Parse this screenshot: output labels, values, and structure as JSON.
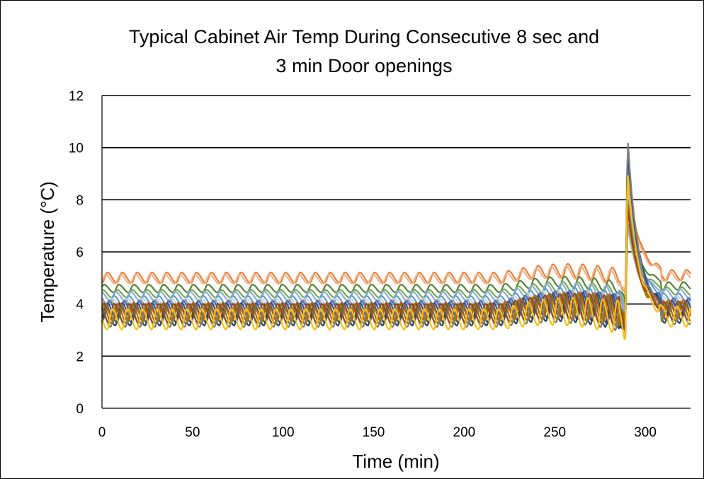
{
  "chart_data": {
    "type": "line",
    "title_line1": "Typical Cabinet Air Temp During Consecutive 8 sec and",
    "title_line2": "3 min Door openings",
    "xlabel": "Time (min)",
    "ylabel": "Temperature (°C)",
    "xlim": [
      0,
      325
    ],
    "ylim": [
      0,
      12
    ],
    "xticks": [
      0,
      50,
      100,
      150,
      200,
      250,
      300
    ],
    "yticks": [
      0,
      2,
      4,
      6,
      8,
      10,
      12
    ],
    "grid": "horizontal",
    "legend": "none",
    "cycle_period_min": 8.2,
    "door_spike_time_min": 289,
    "series": [
      {
        "color": "#ED7D31",
        "base": 4.95,
        "amp": 0.4,
        "spike": 9.0
      },
      {
        "color": "#F4B183",
        "base": 4.9,
        "amp": 0.35,
        "spike": 8.6
      },
      {
        "color": "#548235",
        "base": 4.55,
        "amp": 0.3,
        "spike": 7.6
      },
      {
        "color": "#70AD47",
        "base": 4.35,
        "amp": 0.3,
        "spike": 7.2
      },
      {
        "color": "#8FAADC",
        "base": 4.25,
        "amp": 0.35,
        "spike": 7.0
      },
      {
        "color": "#5B9BD5",
        "base": 4.05,
        "amp": 0.4,
        "spike": 8.2
      },
      {
        "color": "#BDD7EE",
        "base": 3.95,
        "amp": 0.4,
        "spike": 7.0
      },
      {
        "color": "#A5A5A5",
        "base": 3.8,
        "amp": 0.55,
        "spike": 7.2
      },
      {
        "color": "#4472C4",
        "base": 3.7,
        "amp": 0.65,
        "spike": 9.6
      },
      {
        "color": "#2F5597",
        "base": 3.55,
        "amp": 0.75,
        "spike": 10.0
      },
      {
        "color": "#264478",
        "base": 3.45,
        "amp": 0.8,
        "spike": 10.4
      },
      {
        "color": "#C55A11",
        "base": 3.6,
        "amp": 0.7,
        "spike": 8.0
      },
      {
        "color": "#997300",
        "base": 3.5,
        "amp": 0.75,
        "spike": 7.8
      },
      {
        "color": "#7F7F7F",
        "base": 3.4,
        "amp": 0.8,
        "spike": 10.5
      },
      {
        "color": "#9E480E",
        "base": 3.55,
        "amp": 0.7,
        "spike": 7.8
      },
      {
        "color": "#FFC000",
        "base": 3.3,
        "amp": 0.8,
        "spike": 9.2
      }
    ]
  }
}
